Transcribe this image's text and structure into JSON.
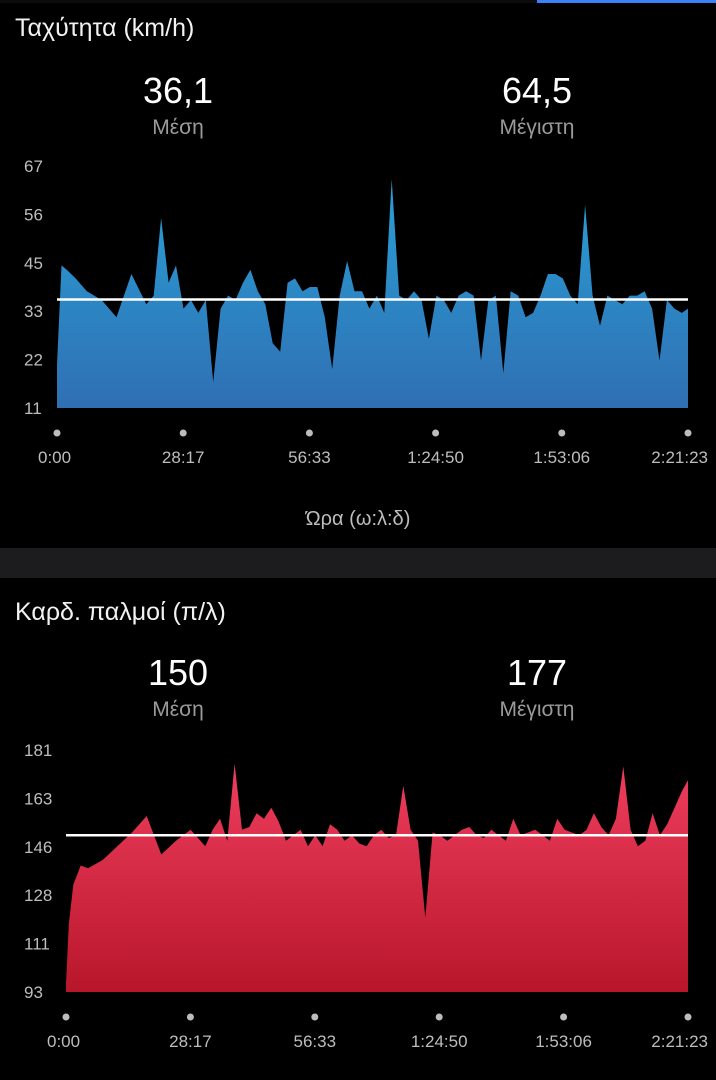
{
  "chart_data": [
    {
      "type": "area",
      "title": "Ταχύτητα (km/h)",
      "stats": [
        {
          "value": "36,1",
          "label": "Μέση"
        },
        {
          "value": "64,5",
          "label": "Μέγιστη"
        }
      ],
      "average": 36.1,
      "ylim": [
        11,
        67
      ],
      "yticks": [
        "11",
        "22",
        "33",
        "45",
        "56",
        "67"
      ],
      "xticks": [
        "0:00",
        "28:17",
        "56:33",
        "1:24:50",
        "1:53:06",
        "2:21:23"
      ],
      "xlabel": "Ώρα (ω:λ:δ)",
      "duration_seconds": 8483,
      "colors": {
        "top": "#2aa0d6",
        "bottom": "#2f6fb3",
        "avg_line": "#ffffff"
      },
      "x": [
        0,
        60,
        130,
        250,
        400,
        600,
        800,
        1000,
        1200,
        1300,
        1400,
        1500,
        1600,
        1700,
        1800,
        1900,
        2000,
        2100,
        2200,
        2300,
        2400,
        2500,
        2600,
        2700,
        2800,
        2900,
        3000,
        3100,
        3200,
        3300,
        3400,
        3500,
        3600,
        3700,
        3800,
        3900,
        4000,
        4100,
        4200,
        4300,
        4400,
        4500,
        4600,
        4700,
        4800,
        4900,
        5000,
        5100,
        5200,
        5300,
        5400,
        5500,
        5600,
        5700,
        5800,
        5900,
        6000,
        6100,
        6200,
        6300,
        6400,
        6500,
        6600,
        6700,
        6800,
        6900,
        7000,
        7100,
        7200,
        7300,
        7400,
        7500,
        7600,
        7700,
        7800,
        7900,
        8000,
        8100,
        8200,
        8300,
        8400,
        8483
      ],
      "values": [
        21,
        44,
        43,
        41,
        38,
        36,
        32,
        42,
        35,
        37,
        55,
        40,
        44,
        34,
        36,
        33,
        36,
        17,
        34,
        37,
        36,
        40,
        43,
        38,
        35,
        26,
        24,
        40,
        41,
        38,
        39,
        39,
        32,
        20,
        37,
        45,
        38,
        38,
        34,
        37,
        33,
        64,
        37,
        36,
        38,
        36,
        27,
        37,
        36,
        33,
        37,
        38,
        37,
        22,
        36,
        37,
        19,
        38,
        37,
        32,
        33,
        37,
        42,
        42,
        41,
        37,
        35,
        58,
        37,
        30,
        37,
        36,
        35,
        37,
        37,
        38,
        34,
        22,
        36,
        34,
        33,
        34
      ]
    },
    {
      "type": "area",
      "title": "Καρδ. παλμοί (π/λ)",
      "stats": [
        {
          "value": "150",
          "label": "Μέση"
        },
        {
          "value": "177",
          "label": "Μέγιστη"
        }
      ],
      "average": 150,
      "ylim": [
        93,
        181
      ],
      "yticks": [
        "93",
        "111",
        "128",
        "146",
        "163",
        "181"
      ],
      "xticks": [
        "0:00",
        "28:17",
        "56:33",
        "1:24:50",
        "1:53:06",
        "2:21:23"
      ],
      "duration_seconds": 8483,
      "colors": {
        "top": "#ef3e5f",
        "bottom": "#b8162a",
        "avg_line": "#ffffff"
      },
      "x": [
        0,
        40,
        100,
        200,
        300,
        500,
        700,
        900,
        1100,
        1300,
        1500,
        1700,
        1900,
        2000,
        2100,
        2200,
        2300,
        2400,
        2500,
        2600,
        2700,
        2800,
        2900,
        3000,
        3100,
        3200,
        3300,
        3400,
        3500,
        3600,
        3700,
        3800,
        3900,
        4000,
        4100,
        4200,
        4300,
        4400,
        4500,
        4600,
        4700,
        4800,
        4900,
        5000,
        5100,
        5200,
        5300,
        5400,
        5500,
        5600,
        5700,
        5800,
        5900,
        6000,
        6100,
        6200,
        6300,
        6400,
        6500,
        6600,
        6700,
        6800,
        6900,
        7000,
        7100,
        7200,
        7300,
        7400,
        7500,
        7600,
        7700,
        7800,
        7900,
        8000,
        8100,
        8200,
        8300,
        8400,
        8483
      ],
      "values": [
        96,
        118,
        132,
        139,
        138,
        141,
        146,
        151,
        157,
        143,
        148,
        152,
        146,
        152,
        156,
        148,
        176,
        152,
        153,
        158,
        156,
        160,
        155,
        148,
        150,
        152,
        146,
        150,
        146,
        154,
        152,
        148,
        150,
        147,
        146,
        150,
        152,
        149,
        150,
        168,
        152,
        148,
        120,
        151,
        150,
        148,
        150,
        152,
        153,
        150,
        149,
        152,
        150,
        148,
        156,
        150,
        151,
        152,
        150,
        148,
        156,
        152,
        151,
        150,
        152,
        158,
        153,
        150,
        156,
        175,
        152,
        146,
        148,
        158,
        150,
        154,
        160,
        166,
        170
      ]
    }
  ]
}
